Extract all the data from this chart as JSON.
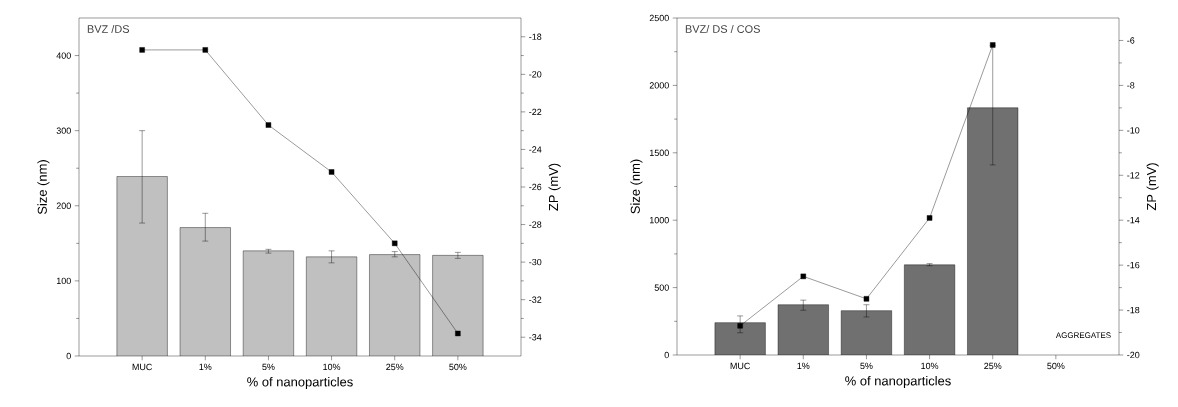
{
  "chart_data": [
    {
      "type": "bar",
      "title": "BVZ /DS",
      "xlabel": "% of nanoparticles",
      "ylabel": "Size (nm)",
      "y2label": "ZP (mV)",
      "categories": [
        "MUC",
        "1%",
        "5%",
        "10%",
        "25%",
        "50%"
      ],
      "series": [
        {
          "color": "#c0c0c0",
          "values": [
            239,
            171,
            140,
            132,
            135,
            134
          ],
          "errors": [
            [
              177,
              300
            ],
            [
              153,
              190
            ],
            [
              137,
              142
            ],
            [
              124,
              140
            ],
            [
              132,
              139
            ],
            [
              130,
              138
            ]
          ]
        },
        {
          "type": "line",
          "axis": "y2",
          "color": "#000000",
          "values": [
            -18.7,
            -18.7,
            -22.7,
            -25.2,
            -29.0,
            -33.8
          ]
        }
      ],
      "ylim": [
        0,
        450
      ],
      "yticks": [
        0,
        100,
        200,
        300,
        400
      ],
      "y2lim": [
        -35,
        -17
      ],
      "y2ticks": [
        -34,
        -32,
        -30,
        -28,
        -26,
        -24,
        -22,
        -20,
        -18
      ],
      "marker": "square",
      "grid": false
    },
    {
      "type": "bar",
      "title": "BVZ/ DS / COS",
      "xlabel": "% of nanoparticles",
      "ylabel": "Size (nm)",
      "y2label": "ZP (mV)",
      "categories": [
        "MUC",
        "1%",
        "5%",
        "10%",
        "25%",
        "50%"
      ],
      "series": [
        {
          "color": "#707070",
          "values": [
            240,
            373,
            329,
            669,
            1834,
            null
          ],
          "errors": [
            [
              165,
              290
            ],
            [
              332,
              407
            ],
            [
              282,
              373
            ],
            [
              662,
              678
            ],
            [
              1410,
              2297
            ],
            null
          ]
        },
        {
          "type": "line",
          "axis": "y2",
          "color": "#000000",
          "values": [
            -18.7,
            -16.5,
            -17.5,
            -13.9,
            -6.2,
            null
          ]
        }
      ],
      "ylim": [
        0,
        2500
      ],
      "yticks": [
        0,
        500,
        1000,
        1500,
        2000,
        2500
      ],
      "y2lim": [
        -20,
        -5
      ],
      "y2ticks": [
        -20,
        -18,
        -16,
        -14,
        -12,
        -10,
        -8,
        -6
      ],
      "annotations": [
        "AGGREGATES"
      ],
      "marker": "square",
      "grid": false
    }
  ]
}
